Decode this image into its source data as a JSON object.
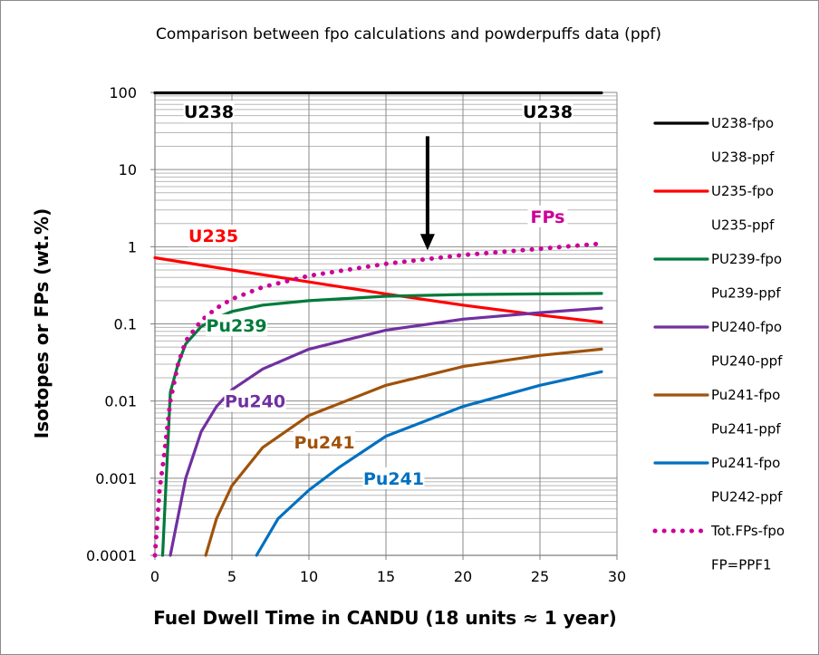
{
  "chart_data": {
    "type": "line",
    "title": "Comparison between fpo calculations and powderpuffs data (ppf)",
    "xlabel": "Fuel Dwell Time in CANDU (18 units ≈ 1 year)",
    "ylabel": "Isotopes or FPs (wt.%)",
    "xlim": [
      0,
      30
    ],
    "ylim": [
      0.0001,
      100
    ],
    "yscale": "log",
    "x_ticks": [
      "0",
      "5",
      "10",
      "15",
      "20",
      "25",
      "30"
    ],
    "y_ticks": [
      "0.0001",
      "0.001",
      "0.01",
      "0.1",
      "1",
      "10",
      "100"
    ],
    "series": [
      {
        "name": "U238-fpo",
        "color": "#000000",
        "dash": "solid",
        "x": [
          0,
          29
        ],
        "values": [
          98.6,
          98.6
        ]
      },
      {
        "name": "U235-fpo",
        "color": "#ff0000",
        "dash": "solid",
        "x": [
          0,
          5,
          10,
          15,
          20,
          25,
          29
        ],
        "values": [
          0.72,
          0.5,
          0.35,
          0.245,
          0.175,
          0.13,
          0.105
        ]
      },
      {
        "name": "PU239-fpo",
        "color": "#007a3a",
        "dash": "solid",
        "x": [
          0.5,
          1,
          1.5,
          2,
          3,
          4,
          5,
          7,
          10,
          15,
          20,
          25,
          29
        ],
        "values": [
          0.0001,
          0.013,
          0.03,
          0.055,
          0.092,
          0.12,
          0.145,
          0.175,
          0.2,
          0.228,
          0.24,
          0.245,
          0.248
        ]
      },
      {
        "name": "PU240-fpo",
        "color": "#7030a0",
        "dash": "solid",
        "x": [
          1,
          2,
          3,
          4,
          5,
          7,
          10,
          15,
          20,
          25,
          29
        ],
        "values": [
          0.0001,
          0.001,
          0.004,
          0.0085,
          0.014,
          0.026,
          0.047,
          0.083,
          0.115,
          0.14,
          0.16
        ]
      },
      {
        "name": "Pu241-fpo",
        "color": "#a0520a",
        "dash": "solid",
        "x": [
          3.3,
          4,
          5,
          7,
          10,
          15,
          20,
          25,
          29
        ],
        "values": [
          0.0001,
          0.0003,
          0.0008,
          0.0025,
          0.0065,
          0.016,
          0.028,
          0.039,
          0.047
        ]
      },
      {
        "name": "Pu241-fpo",
        "color": "#0070c0",
        "dash": "solid",
        "x": [
          6.6,
          8,
          10,
          12,
          15,
          20,
          25,
          29
        ],
        "values": [
          0.0001,
          0.0003,
          0.0007,
          0.0014,
          0.0035,
          0.0085,
          0.016,
          0.024
        ]
      },
      {
        "name": "Tot.FPs-fpo",
        "color": "#cc0099",
        "dash": "dotted",
        "x": [
          0,
          0.3,
          0.6,
          1,
          1.5,
          2,
          3,
          4,
          5,
          7,
          10,
          15,
          20,
          25,
          29
        ],
        "values": [
          0.0001,
          0.0007,
          0.002,
          0.01,
          0.03,
          0.06,
          0.11,
          0.16,
          0.21,
          0.3,
          0.42,
          0.6,
          0.78,
          0.94,
          1.1
        ]
      }
    ],
    "legend": {
      "position": "right",
      "entries": [
        {
          "label": "U238-fpo",
          "color": "#000000",
          "style": "solid"
        },
        {
          "label": "U238-ppf",
          "color": "",
          "style": "none"
        },
        {
          "label": "U235-fpo",
          "color": "#ff0000",
          "style": "solid"
        },
        {
          "label": "U235-ppf",
          "color": "",
          "style": "none"
        },
        {
          "label": "PU239-fpo",
          "color": "#007a3a",
          "style": "solid"
        },
        {
          "label": "Pu239-ppf",
          "color": "",
          "style": "none"
        },
        {
          "label": "PU240-fpo",
          "color": "#7030a0",
          "style": "solid"
        },
        {
          "label": "PU240-ppf",
          "color": "",
          "style": "none"
        },
        {
          "label": "Pu241-fpo",
          "color": "#a0520a",
          "style": "solid"
        },
        {
          "label": "Pu241-ppf",
          "color": "",
          "style": "none"
        },
        {
          "label": "Pu241-fpo",
          "color": "#0070c0",
          "style": "solid"
        },
        {
          "label": "PU242-ppf",
          "color": "",
          "style": "none"
        },
        {
          "label": "Tot.FPs-fpo",
          "color": "#cc0099",
          "style": "dotted"
        },
        {
          "label": "FP=PPF1",
          "color": "",
          "style": "none"
        }
      ]
    },
    "annotations": [
      {
        "text": "U238",
        "color": "#000000",
        "x": 3.5,
        "y": 48
      },
      {
        "text": "U238",
        "color": "#000000",
        "x": 25.5,
        "y": 48
      },
      {
        "text": "U235",
        "color": "#ff0000",
        "x": 3.8,
        "y": 1.18
      },
      {
        "text": "FPs",
        "color": "#cc0099",
        "x": 25.5,
        "y": 2.1
      },
      {
        "text": "Pu239",
        "color": "#007a3a",
        "x": 5.3,
        "y": 0.082
      },
      {
        "text": "Pu240",
        "color": "#7030a0",
        "x": 6.5,
        "y": 0.0085
      },
      {
        "text": "Pu241",
        "color": "#a0520a",
        "x": 11,
        "y": 0.0025
      },
      {
        "text": "Pu241",
        "color": "#0070c0",
        "x": 15.5,
        "y": 0.00085
      }
    ],
    "arrow": {
      "x": 17.7,
      "y_from": 27,
      "y_to": 0.9,
      "color": "#000000"
    },
    "grid": true
  }
}
